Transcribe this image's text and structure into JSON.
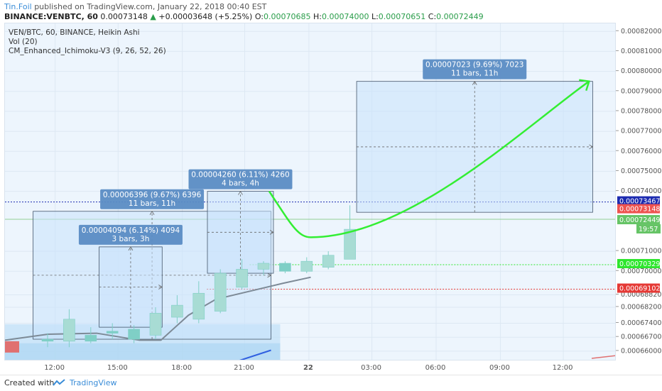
{
  "header": {
    "author": "Tin.Foil",
    "published": "published on TradingView.com, January 22, 2018 00:40 EST",
    "symbol": "BINANCE:VENBTC, 60",
    "last": "0.00073148",
    "change": "+0.00003648 (+5.25%)",
    "o_label": "O:",
    "o": "0.00070685",
    "h_label": "H:",
    "h": "0.00074000",
    "l_label": "L:",
    "l": "0.00070651",
    "c_label": "C:",
    "c": "0.00072449"
  },
  "legend": {
    "line1": "VEN/BTC, 60, BINANCE, Heikin Ashi",
    "line2": "Vol (20)",
    "line3": "CM_Enhanced_Ichimoku-V3 (9, 26, 52, 26)"
  },
  "footer": {
    "created_with": "Created with",
    "brand": "TradingView"
  },
  "colors": {
    "bull": "#a8dcd4",
    "bear": "#7fcfc6",
    "green_arrow": "#33ee33",
    "blue_label": "#5b8cc4",
    "red_line": "#e53935",
    "navy_line": "#1c2bb0"
  },
  "chart_data": {
    "type": "candlestick",
    "style": "Heikin Ashi",
    "ylim": [
      0.000655,
      0.000824
    ],
    "y_ticks": [
      "0.00082000",
      "0.00081000",
      "0.00080000",
      "0.00079000",
      "0.00078000",
      "0.00077000",
      "0.00076000",
      "0.00075000",
      "0.00074000",
      "0.00071000",
      "0.00070000",
      "0.00068820",
      "0.00068200",
      "0.00067400",
      "0.00066700",
      "0.00066000"
    ],
    "x_ticks": [
      "12:00",
      "15:00",
      "18:00",
      "21:00",
      "22",
      "03:00",
      "06:00",
      "09:00",
      "12:00"
    ],
    "price_labels": [
      {
        "value": "0.00073467",
        "color": "#1c2bb0"
      },
      {
        "value": "0.00073148",
        "color": "#ef5350"
      },
      {
        "value": "0.00072449",
        "color": "#66c466"
      },
      {
        "value": "19:57",
        "color": "#66c466"
      },
      {
        "value": "0.00070329",
        "color": "#2ee62e"
      },
      {
        "value": "0.00069102",
        "color": "#e53935"
      }
    ],
    "candles": [
      {
        "t": 1,
        "o": 0.000666,
        "c": 0.000665,
        "h": 0.000669,
        "l": 0.000662
      },
      {
        "t": 2,
        "o": 0.000665,
        "c": 0.000676,
        "h": 0.000681,
        "l": 0.000662
      },
      {
        "t": 3,
        "o": 0.000668,
        "c": 0.000665,
        "h": 0.000672,
        "l": 0.000664
      },
      {
        "t": 4,
        "o": 0.00067,
        "c": 0.000669,
        "h": 0.000674,
        "l": 0.000666
      },
      {
        "t": 5,
        "o": 0.000671,
        "c": 0.000666,
        "h": 0.000673,
        "l": 0.000664
      },
      {
        "t": 6,
        "o": 0.000668,
        "c": 0.000679,
        "h": 0.000682,
        "l": 0.000666
      },
      {
        "t": 7,
        "o": 0.000677,
        "c": 0.000683,
        "h": 0.000688,
        "l": 0.000674
      },
      {
        "t": 8,
        "o": 0.000676,
        "c": 0.000689,
        "h": 0.000695,
        "l": 0.000674
      },
      {
        "t": 9,
        "o": 0.00068,
        "c": 0.000699,
        "h": 0.000701,
        "l": 0.000679
      },
      {
        "t": 10,
        "o": 0.000692,
        "c": 0.000701,
        "h": 0.000706,
        "l": 0.000691
      },
      {
        "t": 11,
        "o": 0.000701,
        "c": 0.000704,
        "h": 0.000705,
        "l": 0.000698
      },
      {
        "t": 12,
        "o": 0.000704,
        "c": 0.0007,
        "h": 0.000705,
        "l": 0.000699
      },
      {
        "t": 13,
        "o": 0.0007,
        "c": 0.000705,
        "h": 0.000707,
        "l": 0.000699
      },
      {
        "t": 14,
        "o": 0.000702,
        "c": 0.000708,
        "h": 0.00071,
        "l": 0.000701
      },
      {
        "t": 15,
        "o": 0.000706,
        "c": 0.000721,
        "h": 0.000733,
        "l": 0.000706
      }
    ],
    "baseline": [
      {
        "x": 0.0,
        "y": 0.0006655
      },
      {
        "x": 0.07,
        "y": 0.0006685
      },
      {
        "x": 0.15,
        "y": 0.000669
      },
      {
        "x": 0.22,
        "y": 0.0006655
      },
      {
        "x": 0.255,
        "y": 0.0006655
      },
      {
        "x": 0.3,
        "y": 0.000678
      },
      {
        "x": 0.345,
        "y": 0.000686
      },
      {
        "x": 0.4,
        "y": 0.00069
      },
      {
        "x": 0.455,
        "y": 0.000694
      },
      {
        "x": 0.5,
        "y": 0.000697
      }
    ],
    "measurements": [
      {
        "label1": "0.00006396 (9.67%) 6396",
        "label2": "11 bars, 11h",
        "x0": 0.046,
        "x1": 0.435,
        "y0": 0.000666,
        "y1": 0.00073
      },
      {
        "label1": "0.00004094 (6.14%) 4094",
        "label2": "3 bars, 3h",
        "x0": 0.154,
        "x1": 0.257,
        "y0": 0.000672,
        "y1": 0.0007122
      },
      {
        "label1": "0.00004260 (6.11%) 4260",
        "label2": "4 bars, 4h",
        "x0": 0.331,
        "x1": 0.439,
        "y0": 0.000699,
        "y1": 0.00074
      },
      {
        "label1": "0.00007023 (9.69%) 7023",
        "label2": "11 bars, 11h",
        "x0": 0.575,
        "x1": 0.961,
        "y0": 0.0007295,
        "y1": 0.000795
      }
    ],
    "projection": [
      0.00074,
      0.000717,
      0.000734,
      0.000795
    ]
  }
}
